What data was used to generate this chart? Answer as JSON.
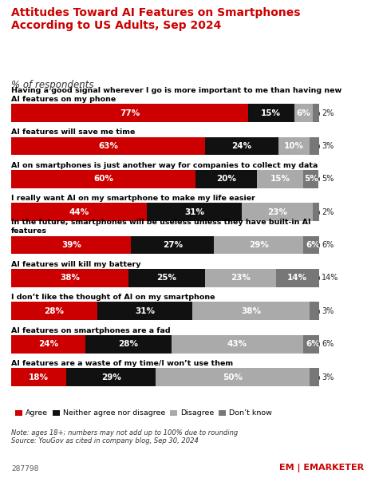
{
  "title": "Attitudes Toward AI Features on Smartphones\nAccording to US Adults, Sep 2024",
  "subtitle": "% of respondents",
  "categories": [
    "Having a good signal wherever I go is more important to me than having new\nAI features on my phone",
    "AI features will save me time",
    "AI on smartphones is just another way for companies to collect my data",
    "I really want AI on my smartphone to make my life easier",
    "In the future, smartphones will be useless unless they have built-in AI\nfeatures",
    "AI features will kill my battery",
    "I don’t like the thought of AI on my smartphone",
    "AI features on smartphones are a fad",
    "AI features are a waste of my time/I won’t use them"
  ],
  "agree": [
    77,
    63,
    60,
    44,
    39,
    38,
    28,
    24,
    18
  ],
  "neither": [
    15,
    24,
    20,
    31,
    27,
    25,
    31,
    28,
    29
  ],
  "disagree": [
    6,
    10,
    15,
    23,
    29,
    23,
    38,
    43,
    50
  ],
  "dont_know": [
    2,
    3,
    5,
    2,
    6,
    14,
    3,
    6,
    3
  ],
  "dk_inside": [
    false,
    false,
    true,
    false,
    true,
    true,
    false,
    true,
    false
  ],
  "colors": {
    "agree": "#cc0000",
    "neither": "#111111",
    "disagree": "#aaaaaa",
    "dont_know": "#777777"
  },
  "title_color": "#cc0000",
  "background_color": "#ffffff",
  "note": "Note: ages 18+; numbers may not add up to 100% due to rounding\nSource: YouGov as cited in company blog, Sep 30, 2024",
  "footer_id": "287798"
}
